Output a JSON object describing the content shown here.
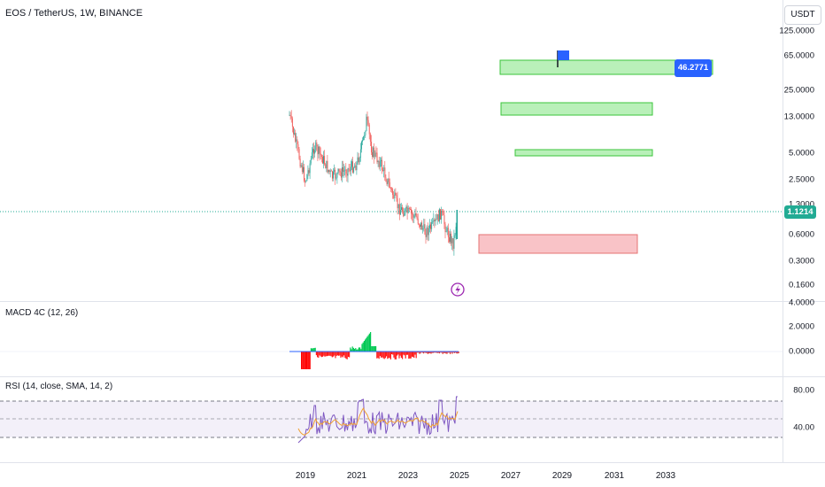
{
  "header": {
    "title": "EOS / TetherUS, 1W, BINANCE",
    "currency": "USDT"
  },
  "price_axis": {
    "ticks": [
      "125.0000",
      "65.0000",
      "25.0000",
      "13.0000",
      "5.0000",
      "2.5000",
      "1.3000",
      "0.6000",
      "0.3000",
      "0.1600"
    ],
    "current_price": "1.1214",
    "target_label": "46.2771"
  },
  "macd": {
    "label": "MACD 4C (12, 26)",
    "ticks": [
      "4.0000",
      "2.0000",
      "0.0000"
    ]
  },
  "rsi": {
    "label": "RSI (14, close, SMA, 14, 2)",
    "ticks": [
      "80.00",
      "40.00"
    ]
  },
  "time_axis": {
    "ticks": [
      "2019",
      "2021",
      "2023",
      "2025",
      "2027",
      "2029",
      "2031",
      "2033"
    ]
  },
  "zones": [
    {
      "type": "target",
      "color": "#7ee07e"
    },
    {
      "type": "target",
      "color": "#7ee07e"
    },
    {
      "type": "target",
      "color": "#7ee07e"
    },
    {
      "type": "support",
      "color": "#f7b6bb"
    }
  ],
  "colors": {
    "up": "#26a69a",
    "down": "#ef5350",
    "current": "#22ab94",
    "target_badge": "#2962ff",
    "rsi": "#7e57c2"
  },
  "icons": {
    "flag": "flag-icon",
    "lightning": "lightning-icon"
  }
}
